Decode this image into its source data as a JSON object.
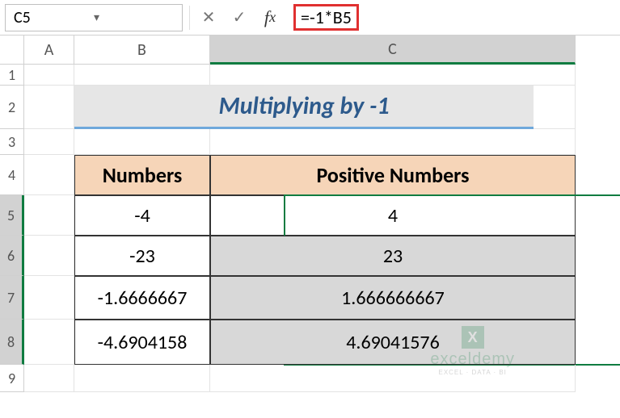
{
  "formula_bar": {
    "name_box": "C5",
    "formula": "=-1*B5"
  },
  "columns": {
    "A": "A",
    "B": "B",
    "C": "C"
  },
  "row_numbers": [
    "1",
    "2",
    "3",
    "4",
    "5",
    "6",
    "7",
    "8",
    "9"
  ],
  "title": "Multiplying by -1",
  "table": {
    "header_b": "Numbers",
    "header_c": "Positive Numbers",
    "rows": [
      {
        "b": "-4",
        "c": "4"
      },
      {
        "b": "-23",
        "c": "23"
      },
      {
        "b": "-1.6666667",
        "c": "1.666666667"
      },
      {
        "b": "-4.6904158",
        "c": "4.69041576"
      }
    ],
    "header_bg": "#f6d5b8",
    "border_color": "#333333",
    "selection_color": "#107c41",
    "highlight_color": "#e03030",
    "title_color": "#2d5a8c",
    "title_underline": "#6fa8dc"
  },
  "watermark": {
    "icon": "X",
    "title": "exceldemy",
    "subtitle": "EXCEL · DATA · BI"
  }
}
